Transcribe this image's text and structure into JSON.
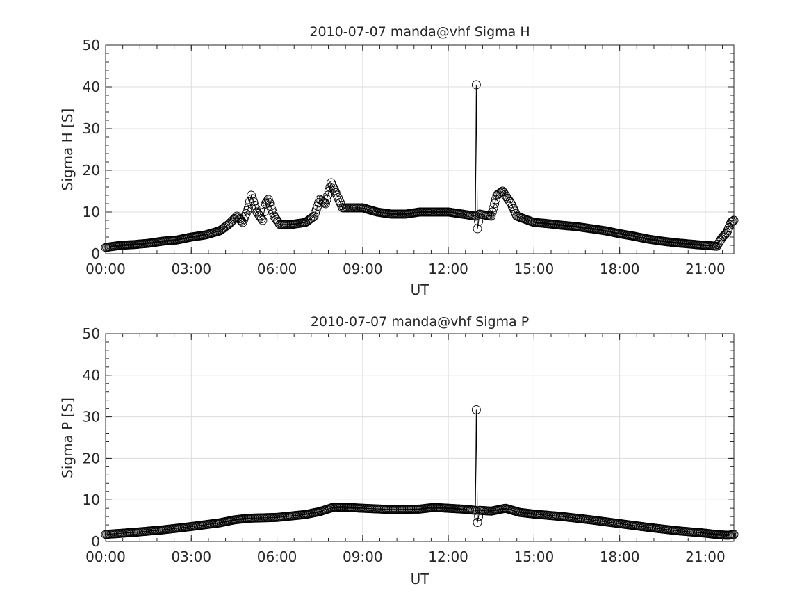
{
  "chart_data": [
    {
      "type": "line",
      "title": "2010-07-07  manda@vhf Sigma H",
      "xlabel": "UT",
      "ylabel": "Sigma H [S]",
      "xlim": [
        0,
        22
      ],
      "ylim": [
        0,
        50
      ],
      "xticks": [
        0,
        3,
        6,
        9,
        12,
        15,
        18,
        21
      ],
      "xtick_labels": [
        "00:00",
        "03:00",
        "06:00",
        "09:00",
        "12:00",
        "15:00",
        "18:00",
        "21:00"
      ],
      "yticks": [
        0,
        10,
        20,
        30,
        40,
        50
      ],
      "ytick_labels": [
        "0",
        "10",
        "20",
        "30",
        "40",
        "50"
      ],
      "grid": true,
      "marker": "circle",
      "series": [
        {
          "name": "Sigma H",
          "x": [
            0,
            0.5,
            1,
            1.5,
            2,
            2.5,
            3,
            3.5,
            4,
            4.3,
            4.6,
            4.8,
            5,
            5.1,
            5.3,
            5.5,
            5.6,
            5.7,
            5.9,
            6.1,
            6.5,
            7,
            7.3,
            7.5,
            7.7,
            7.9,
            8.1,
            8.3,
            8.6,
            9,
            9.5,
            10,
            10.5,
            11,
            11.5,
            12,
            12.5,
            12.95,
            12.98,
            13.02,
            13.1,
            13.5,
            13.7,
            13.9,
            14.2,
            14.4,
            14.6,
            15,
            15.5,
            16,
            16.5,
            17,
            17.5,
            18,
            18.5,
            19,
            19.5,
            20,
            20.5,
            21,
            21.4,
            21.6,
            21.75,
            21.9,
            22
          ],
          "y": [
            1.5,
            2,
            2.2,
            2.5,
            3,
            3.3,
            4,
            4.5,
            5.5,
            7,
            9,
            7.5,
            11,
            14,
            10,
            8,
            12,
            13,
            9,
            7,
            7,
            7.5,
            9,
            13,
            12,
            17,
            14,
            11,
            11,
            11,
            10,
            9.5,
            9.5,
            10,
            10,
            10,
            9.5,
            9,
            40.5,
            6,
            9.5,
            9,
            14,
            15,
            12,
            9,
            8.5,
            7.5,
            7.2,
            6.8,
            6.5,
            6,
            5.5,
            4.8,
            4.2,
            3.5,
            3,
            2.6,
            2.3,
            2,
            1.8,
            4,
            5,
            7.5,
            8
          ]
        }
      ]
    },
    {
      "type": "line",
      "title": "2010-07-07  manda@vhf Sigma P",
      "xlabel": "UT",
      "ylabel": "Sigma P [S]",
      "xlim": [
        0,
        22
      ],
      "ylim": [
        0,
        50
      ],
      "xticks": [
        0,
        3,
        6,
        9,
        12,
        15,
        18,
        21
      ],
      "xtick_labels": [
        "00:00",
        "03:00",
        "06:00",
        "09:00",
        "12:00",
        "15:00",
        "18:00",
        "21:00"
      ],
      "yticks": [
        0,
        10,
        20,
        30,
        40,
        50
      ],
      "ytick_labels": [
        "0",
        "10",
        "20",
        "30",
        "40",
        "50"
      ],
      "grid": true,
      "marker": "circle",
      "series": [
        {
          "name": "Sigma P",
          "x": [
            0,
            1,
            2,
            3,
            4,
            4.5,
            5,
            6,
            7,
            7.5,
            8,
            8.5,
            9,
            10,
            11,
            11.5,
            12,
            12.5,
            12.95,
            12.98,
            13.02,
            13.1,
            13.5,
            14,
            14.5,
            15,
            16,
            17,
            18,
            19,
            20,
            21,
            21.5,
            21.8,
            22
          ],
          "y": [
            1.7,
            2.2,
            2.8,
            3.6,
            4.5,
            5.2,
            5.6,
            5.8,
            6.5,
            7.2,
            8.3,
            8.2,
            8,
            7.7,
            7.8,
            8.2,
            8,
            7.8,
            7.5,
            31.7,
            4.6,
            7.5,
            7.3,
            8,
            7,
            6.6,
            6,
            5.2,
            4.3,
            3.4,
            2.6,
            2,
            1.6,
            1.5,
            1.7
          ]
        }
      ]
    }
  ]
}
